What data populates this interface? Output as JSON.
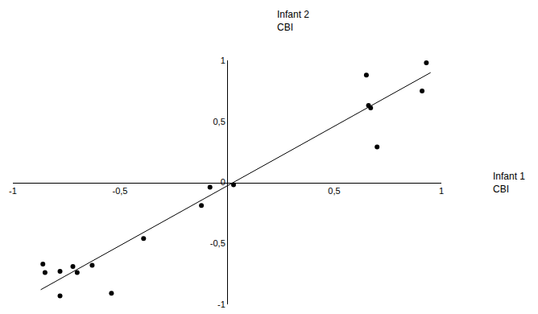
{
  "chart_data": {
    "type": "scatter",
    "xlabel": "Infant 1\nCBI",
    "ylabel": "Infant 2\nCBI",
    "series": [
      {
        "type": "scatter",
        "color": "#000000",
        "marker": "circle",
        "x": [
          0.93,
          0.91,
          0.65,
          0.66,
          0.67,
          0.7,
          0.03,
          -0.08,
          -0.12,
          -0.39,
          -0.54,
          -0.63,
          -0.7,
          -0.72,
          -0.78,
          -0.86,
          -0.85,
          -0.78
        ],
        "values": [
          0.98,
          0.75,
          0.88,
          0.63,
          0.61,
          0.29,
          -0.02,
          -0.04,
          -0.19,
          -0.46,
          -0.91,
          -0.68,
          -0.74,
          -0.69,
          -0.73,
          -0.67,
          -0.74,
          -0.93
        ]
      },
      {
        "type": "line",
        "color": "#000000",
        "line_style": "solid",
        "x": [
          -0.87,
          0.95
        ],
        "values": [
          -0.88,
          0.9
        ]
      }
    ],
    "xlim": [
      -1,
      1
    ],
    "ylim": [
      -1,
      1
    ],
    "xticks": [
      -1,
      {
        "value": -0.5,
        "label": "-0,5"
      },
      {
        "value": 0.5,
        "label": "0,5"
      },
      1
    ],
    "yticks": [
      -1,
      {
        "value": -0.5,
        "label": "-0,5"
      },
      0,
      {
        "value": 0.5,
        "label": "0,5"
      },
      1
    ],
    "grid": false
  }
}
